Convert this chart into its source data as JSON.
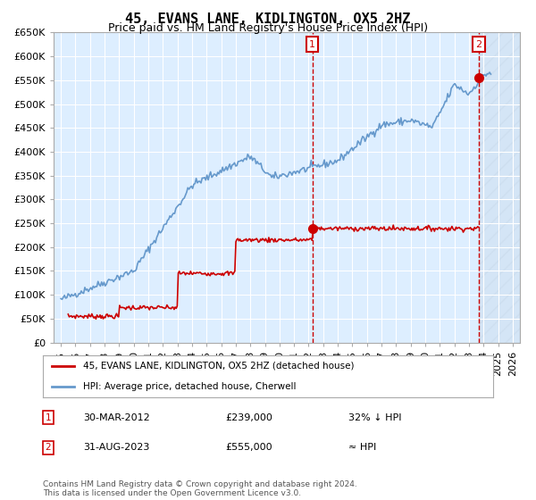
{
  "title": "45, EVANS LANE, KIDLINGTON, OX5 2HZ",
  "subtitle": "Price paid vs. HM Land Registry's House Price Index (HPI)",
  "legend_line1": "45, EVANS LANE, KIDLINGTON, OX5 2HZ (detached house)",
  "legend_line2": "HPI: Average price, detached house, Cherwell",
  "annotation1_label": "1",
  "annotation1_date": "30-MAR-2012",
  "annotation1_price": "£239,000",
  "annotation1_note": "32% ↓ HPI",
  "annotation2_label": "2",
  "annotation2_date": "31-AUG-2023",
  "annotation2_price": "£555,000",
  "annotation2_note": "≈ HPI",
  "footer": "Contains HM Land Registry data © Crown copyright and database right 2024.\nThis data is licensed under the Open Government Licence v3.0.",
  "hpi_color": "#6699cc",
  "price_color": "#cc0000",
  "annotation_color": "#cc0000",
  "bg_color": "#ddeeff",
  "ylim": [
    0,
    650000
  ],
  "yticks": [
    0,
    50000,
    100000,
    150000,
    200000,
    250000,
    300000,
    350000,
    400000,
    450000,
    500000,
    550000,
    600000,
    650000
  ]
}
